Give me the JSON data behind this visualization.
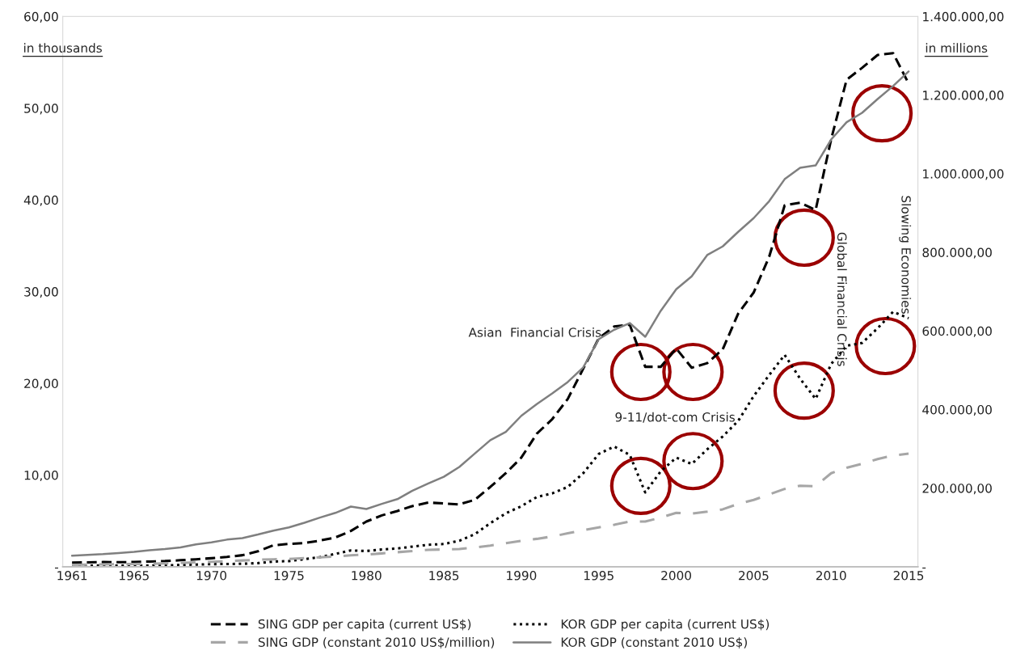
{
  "chart_data": {
    "type": "line",
    "ylabel": "in thousands",
    "y2label": "in millions",
    "x": [
      1961,
      1962,
      1963,
      1964,
      1965,
      1966,
      1967,
      1968,
      1969,
      1970,
      1971,
      1972,
      1973,
      1974,
      1975,
      1976,
      1977,
      1978,
      1979,
      1980,
      1981,
      1982,
      1983,
      1984,
      1985,
      1986,
      1987,
      1988,
      1989,
      1990,
      1991,
      1992,
      1993,
      1994,
      1995,
      1996,
      1997,
      1998,
      1999,
      2000,
      2001,
      2002,
      2003,
      2004,
      2005,
      2006,
      2007,
      2008,
      2009,
      2010,
      2011,
      2012,
      2013,
      2014,
      2015
    ],
    "series": [
      {
        "name": "SING GDP per capita (current US$)",
        "color": "#000000",
        "line_style": "dashed",
        "values": [
          0.45,
          0.47,
          0.51,
          0.49,
          0.52,
          0.57,
          0.62,
          0.71,
          0.81,
          0.93,
          1.07,
          1.26,
          1.68,
          2.34,
          2.49,
          2.59,
          2.85,
          3.19,
          3.9,
          4.93,
          5.6,
          6.08,
          6.63,
          7.0,
          6.9,
          6.8,
          7.3,
          8.7,
          10.2,
          11.9,
          14.5,
          16.1,
          18.3,
          21.6,
          24.9,
          26.2,
          26.4,
          21.8,
          21.8,
          23.8,
          21.7,
          22.2,
          23.7,
          27.6,
          29.9,
          33.8,
          39.4,
          39.7,
          38.9,
          46.6,
          53.1,
          54.4,
          55.8,
          56.0,
          52.7
        ]
      },
      {
        "name": "KOR GDP per capita (current US$)",
        "color": "#000000",
        "line_style": "dotted",
        "values": [
          0.09,
          0.11,
          0.14,
          0.12,
          0.11,
          0.13,
          0.16,
          0.19,
          0.24,
          0.28,
          0.3,
          0.32,
          0.4,
          0.56,
          0.62,
          0.83,
          1.05,
          1.4,
          1.78,
          1.71,
          1.88,
          1.99,
          2.2,
          2.4,
          2.48,
          2.83,
          3.55,
          4.75,
          5.82,
          6.6,
          7.6,
          8.0,
          8.7,
          10.2,
          12.3,
          13.1,
          12.2,
          8.1,
          10.4,
          11.9,
          11.2,
          12.8,
          14.2,
          15.9,
          18.6,
          20.9,
          23.1,
          20.5,
          18.3,
          22.1,
          24.1,
          24.4,
          26.0,
          27.8,
          27.1
        ]
      },
      {
        "name": "SING GDP (constant 2010 US$/million)",
        "color": "#a6a6a6",
        "line_style": "dashed",
        "axis": "y2",
        "values": [
          5000,
          5500,
          6000,
          6500,
          7000,
          7500,
          8500,
          9500,
          11000,
          12500,
          14000,
          16000,
          18000,
          19000,
          20000,
          22000,
          24000,
          26000,
          29000,
          31000,
          34000,
          37000,
          40000,
          43000,
          44000,
          45000,
          49000,
          54000,
          60000,
          66000,
          71000,
          77000,
          85000,
          93000,
          100000,
          107000,
          115000,
          115000,
          125000,
          137000,
          135000,
          140000,
          146000,
          160000,
          170000,
          184000,
          198000,
          206000,
          205000,
          238000,
          252000,
          262000,
          274000,
          283000,
          288000
        ]
      },
      {
        "name": "KOR GDP (constant 2010 US$)",
        "color": "#7f7f7f",
        "line_style": "solid",
        "axis": "y2",
        "values": [
          28000,
          30000,
          32000,
          35000,
          38000,
          42000,
          45000,
          49000,
          57000,
          62000,
          69000,
          73000,
          82000,
          92000,
          100000,
          112000,
          125000,
          137000,
          153000,
          147000,
          160000,
          172000,
          194000,
          212000,
          229000,
          254000,
          288000,
          322000,
          343000,
          384000,
          414000,
          441000,
          470000,
          507000,
          579000,
          603000,
          620000,
          585000,
          651000,
          706000,
          739000,
          793000,
          815000,
          852000,
          887000,
          930000,
          986000,
          1015000,
          1021000,
          1087000,
          1131000,
          1155000,
          1190000,
          1223000,
          1260000
        ]
      }
    ],
    "xlim": [
      1960.4,
      2015.6
    ],
    "xticks": [
      1961,
      1965,
      1970,
      1975,
      1980,
      1985,
      1990,
      1995,
      2000,
      2005,
      2010,
      2015
    ],
    "ylim": [
      0,
      60
    ],
    "yticks": [
      {
        "value": 0,
        "label": "-"
      },
      {
        "value": 10,
        "label": "10,00"
      },
      {
        "value": 20,
        "label": "20,00"
      },
      {
        "value": 30,
        "label": "30,00"
      },
      {
        "value": 40,
        "label": "40,00"
      },
      {
        "value": 50,
        "label": "50,00"
      },
      {
        "value": 60,
        "label": "60,00"
      }
    ],
    "y2lim": [
      0,
      1400000
    ],
    "y2ticks": [
      {
        "value": 0,
        "label": "-"
      },
      {
        "value": 200000,
        "label": "200.000,00"
      },
      {
        "value": 400000,
        "label": "400.000,00"
      },
      {
        "value": 600000,
        "label": "600.000,00"
      },
      {
        "value": 800000,
        "label": "800.000,00"
      },
      {
        "value": 1000000,
        "label": "1.000.000,00"
      },
      {
        "value": 1200000,
        "label": "1.200.000,00"
      },
      {
        "value": 1400000,
        "label": "1.400.000,00"
      }
    ],
    "annotations": [
      "Asian  Financial Crisis",
      "9-11/dot-com Crisis",
      "Global Financial Crisis",
      "Slowing Economies"
    ],
    "grid": false,
    "legend": "bottom",
    "marker": "none"
  }
}
